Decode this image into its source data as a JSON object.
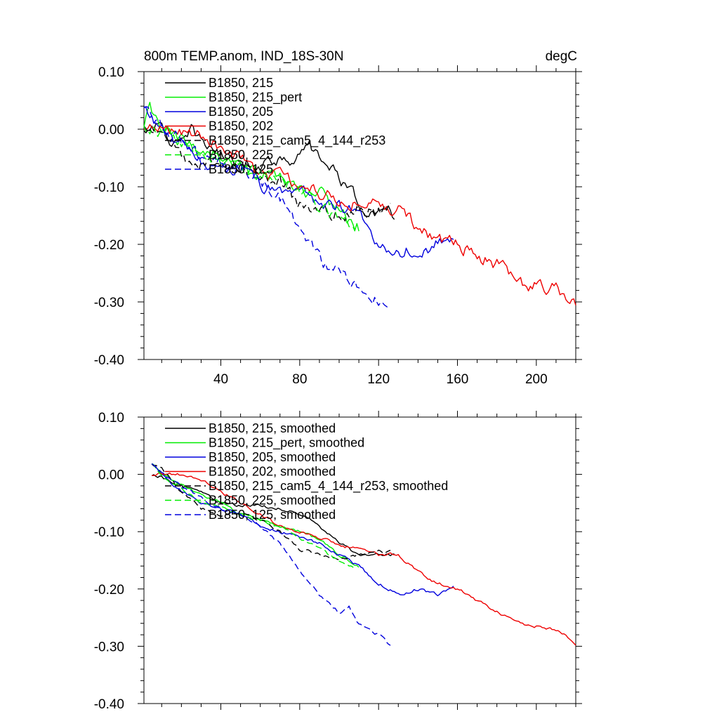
{
  "title_left": "800m TEMP.anom, IND_18S-30N",
  "title_right": "degC",
  "colors": {
    "black": "#000000",
    "green": "#00ee00",
    "blue": "#0000dd",
    "red": "#ee0000"
  },
  "chart_data": [
    {
      "type": "line",
      "panel": "top",
      "title": "800m TEMP.anom, IND_18S-30N",
      "units": "degC",
      "xlim": [
        1,
        220
      ],
      "ylim": [
        -0.4,
        0.1
      ],
      "x_ticks": [
        "40",
        "80",
        "120",
        "160",
        "200"
      ],
      "y_ticks": [
        "0.10",
        "0.00",
        "-0.10",
        "-0.20",
        "-0.30",
        "-0.40"
      ],
      "legend_position": "top-left",
      "series": [
        {
          "name": "B1850, 215",
          "color": "#000000",
          "dash": "solid",
          "length": 128,
          "anchors": [
            [
              1,
              -0.005
            ],
            [
              5,
              0.01
            ],
            [
              10,
              0.0
            ],
            [
              15,
              -0.02
            ],
            [
              20,
              -0.03
            ],
            [
              25,
              -0.005
            ],
            [
              30,
              -0.02
            ],
            [
              35,
              -0.03
            ],
            [
              40,
              -0.045
            ],
            [
              50,
              -0.06
            ],
            [
              60,
              -0.06
            ],
            [
              70,
              -0.05
            ],
            [
              80,
              -0.05
            ],
            [
              85,
              -0.03
            ],
            [
              90,
              -0.05
            ],
            [
              100,
              -0.08
            ],
            [
              110,
              -0.13
            ],
            [
              120,
              -0.15
            ],
            [
              128,
              -0.15
            ]
          ]
        },
        {
          "name": "B1850, 215_pert",
          "color": "#00ee00",
          "dash": "solid",
          "length": 110,
          "anchors": [
            [
              1,
              0.0
            ],
            [
              4,
              0.035
            ],
            [
              10,
              0.0
            ],
            [
              20,
              -0.02
            ],
            [
              30,
              -0.035
            ],
            [
              40,
              -0.045
            ],
            [
              50,
              -0.07
            ],
            [
              60,
              -0.08
            ],
            [
              70,
              -0.09
            ],
            [
              80,
              -0.11
            ],
            [
              90,
              -0.11
            ],
            [
              100,
              -0.14
            ],
            [
              105,
              -0.16
            ],
            [
              110,
              -0.17
            ]
          ]
        },
        {
          "name": "B1850, 205",
          "color": "#0000dd",
          "dash": "solid",
          "length": 158,
          "anchors": [
            [
              1,
              0.035
            ],
            [
              10,
              0.0
            ],
            [
              20,
              -0.03
            ],
            [
              30,
              -0.06
            ],
            [
              40,
              -0.06
            ],
            [
              50,
              -0.07
            ],
            [
              60,
              -0.1
            ],
            [
              70,
              -0.11
            ],
            [
              80,
              -0.1
            ],
            [
              90,
              -0.13
            ],
            [
              100,
              -0.13
            ],
            [
              110,
              -0.15
            ],
            [
              120,
              -0.2
            ],
            [
              130,
              -0.21
            ],
            [
              140,
              -0.21
            ],
            [
              150,
              -0.2
            ],
            [
              158,
              -0.19
            ]
          ]
        },
        {
          "name": "B1850, 202",
          "color": "#ee0000",
          "dash": "solid",
          "length": 220,
          "anchors": [
            [
              1,
              -0.005
            ],
            [
              10,
              0.0
            ],
            [
              20,
              0.0
            ],
            [
              30,
              -0.01
            ],
            [
              40,
              -0.03
            ],
            [
              50,
              -0.05
            ],
            [
              60,
              -0.08
            ],
            [
              70,
              -0.08
            ],
            [
              80,
              -0.1
            ],
            [
              90,
              -0.11
            ],
            [
              100,
              -0.12
            ],
            [
              110,
              -0.13
            ],
            [
              120,
              -0.13
            ],
            [
              130,
              -0.14
            ],
            [
              140,
              -0.17
            ],
            [
              150,
              -0.19
            ],
            [
              160,
              -0.2
            ],
            [
              170,
              -0.22
            ],
            [
              180,
              -0.235
            ],
            [
              190,
              -0.26
            ],
            [
              195,
              -0.28
            ],
            [
              200,
              -0.265
            ],
            [
              210,
              -0.28
            ],
            [
              220,
              -0.31
            ]
          ]
        },
        {
          "name": "B1850, 215_cam5_4_144_r253",
          "color": "#000000",
          "dash": "dashed",
          "length": 126,
          "anchors": [
            [
              1,
              0.0
            ],
            [
              10,
              0.01
            ],
            [
              15,
              -0.02
            ],
            [
              20,
              -0.04
            ],
            [
              25,
              -0.06
            ],
            [
              30,
              -0.06
            ],
            [
              40,
              -0.07
            ],
            [
              50,
              -0.06
            ],
            [
              60,
              -0.08
            ],
            [
              70,
              -0.09
            ],
            [
              80,
              -0.13
            ],
            [
              90,
              -0.14
            ],
            [
              100,
              -0.15
            ],
            [
              110,
              -0.14
            ],
            [
              120,
              -0.14
            ],
            [
              126,
              -0.14
            ]
          ]
        },
        {
          "name": "B1850, 225",
          "color": "#00ee00",
          "dash": "dashed",
          "length": 108,
          "anchors": [
            [
              1,
              0.0
            ],
            [
              10,
              0.0
            ],
            [
              20,
              -0.02
            ],
            [
              30,
              -0.05
            ],
            [
              40,
              -0.06
            ],
            [
              50,
              -0.07
            ],
            [
              60,
              -0.08
            ],
            [
              70,
              -0.09
            ],
            [
              80,
              -0.11
            ],
            [
              90,
              -0.13
            ],
            [
              100,
              -0.16
            ],
            [
              108,
              -0.17
            ]
          ]
        },
        {
          "name": "B1850, 125",
          "color": "#0000dd",
          "dash": "dashed",
          "length": 126,
          "anchors": [
            [
              1,
              0.03
            ],
            [
              10,
              0.0
            ],
            [
              20,
              -0.02
            ],
            [
              30,
              -0.05
            ],
            [
              40,
              -0.06
            ],
            [
              50,
              -0.07
            ],
            [
              60,
              -0.09
            ],
            [
              70,
              -0.12
            ],
            [
              75,
              -0.14
            ],
            [
              80,
              -0.17
            ],
            [
              90,
              -0.22
            ],
            [
              95,
              -0.25
            ],
            [
              100,
              -0.24
            ],
            [
              105,
              -0.26
            ],
            [
              110,
              -0.28
            ],
            [
              115,
              -0.29
            ],
            [
              120,
              -0.3
            ],
            [
              126,
              -0.31
            ]
          ]
        }
      ]
    },
    {
      "type": "line",
      "panel": "bottom",
      "xlim": [
        1,
        220
      ],
      "ylim": [
        -0.4,
        0.1
      ],
      "y_ticks": [
        "0.10",
        "0.00",
        "-0.10",
        "-0.20",
        "-0.30",
        "-0.40"
      ],
      "legend_position": "top-left",
      "series": [
        {
          "name": "B1850, 215, smoothed",
          "color": "#000000",
          "dash": "solid",
          "length": 128,
          "anchors": [
            [
              5,
              0.0
            ],
            [
              10,
              -0.005
            ],
            [
              20,
              -0.02
            ],
            [
              30,
              -0.03
            ],
            [
              40,
              -0.05
            ],
            [
              50,
              -0.055
            ],
            [
              60,
              -0.055
            ],
            [
              70,
              -0.06
            ],
            [
              80,
              -0.07
            ],
            [
              90,
              -0.09
            ],
            [
              100,
              -0.12
            ],
            [
              110,
              -0.14
            ],
            [
              120,
              -0.14
            ],
            [
              128,
              -0.14
            ]
          ]
        },
        {
          "name": "B1850, 215_pert, smoothed",
          "color": "#00ee00",
          "dash": "solid",
          "length": 110,
          "anchors": [
            [
              5,
              0.02
            ],
            [
              10,
              0.0
            ],
            [
              20,
              -0.02
            ],
            [
              30,
              -0.035
            ],
            [
              40,
              -0.05
            ],
            [
              50,
              -0.07
            ],
            [
              60,
              -0.08
            ],
            [
              70,
              -0.09
            ],
            [
              80,
              -0.1
            ],
            [
              90,
              -0.115
            ],
            [
              100,
              -0.14
            ],
            [
              110,
              -0.16
            ]
          ]
        },
        {
          "name": "B1850, 205, smoothed",
          "color": "#0000dd",
          "dash": "solid",
          "length": 158,
          "anchors": [
            [
              5,
              0.02
            ],
            [
              10,
              0.0
            ],
            [
              20,
              -0.03
            ],
            [
              30,
              -0.05
            ],
            [
              40,
              -0.06
            ],
            [
              50,
              -0.07
            ],
            [
              60,
              -0.09
            ],
            [
              70,
              -0.1
            ],
            [
              80,
              -0.11
            ],
            [
              90,
              -0.12
            ],
            [
              100,
              -0.14
            ],
            [
              110,
              -0.16
            ],
            [
              120,
              -0.19
            ],
            [
              130,
              -0.21
            ],
            [
              140,
              -0.2
            ],
            [
              150,
              -0.21
            ],
            [
              158,
              -0.195
            ]
          ]
        },
        {
          "name": "B1850, 202, smoothed",
          "color": "#ee0000",
          "dash": "solid",
          "length": 220,
          "anchors": [
            [
              5,
              0.0
            ],
            [
              20,
              0.0
            ],
            [
              30,
              -0.01
            ],
            [
              40,
              -0.03
            ],
            [
              50,
              -0.05
            ],
            [
              60,
              -0.07
            ],
            [
              70,
              -0.09
            ],
            [
              80,
              -0.1
            ],
            [
              90,
              -0.11
            ],
            [
              100,
              -0.125
            ],
            [
              110,
              -0.13
            ],
            [
              120,
              -0.14
            ],
            [
              130,
              -0.14
            ],
            [
              140,
              -0.17
            ],
            [
              150,
              -0.19
            ],
            [
              160,
              -0.2
            ],
            [
              170,
              -0.22
            ],
            [
              180,
              -0.24
            ],
            [
              190,
              -0.26
            ],
            [
              200,
              -0.265
            ],
            [
              210,
              -0.27
            ],
            [
              220,
              -0.295
            ]
          ]
        },
        {
          "name": "B1850, 215_cam5_4_144_r253, smoothed",
          "color": "#000000",
          "dash": "dashed",
          "length": 126,
          "anchors": [
            [
              5,
              0.02
            ],
            [
              10,
              0.01
            ],
            [
              20,
              -0.03
            ],
            [
              30,
              -0.06
            ],
            [
              40,
              -0.07
            ],
            [
              50,
              -0.065
            ],
            [
              60,
              -0.08
            ],
            [
              70,
              -0.1
            ],
            [
              80,
              -0.13
            ],
            [
              90,
              -0.14
            ],
            [
              100,
              -0.15
            ],
            [
              110,
              -0.14
            ],
            [
              120,
              -0.135
            ],
            [
              126,
              -0.135
            ]
          ]
        },
        {
          "name": "B1850, 225, smoothed",
          "color": "#00ee00",
          "dash": "dashed",
          "length": 108,
          "anchors": [
            [
              5,
              0.02
            ],
            [
              10,
              0.0
            ],
            [
              20,
              -0.025
            ],
            [
              30,
              -0.05
            ],
            [
              40,
              -0.055
            ],
            [
              50,
              -0.07
            ],
            [
              60,
              -0.08
            ],
            [
              70,
              -0.09
            ],
            [
              80,
              -0.11
            ],
            [
              90,
              -0.13
            ],
            [
              100,
              -0.15
            ],
            [
              108,
              -0.165
            ]
          ]
        },
        {
          "name": "B1850, 125, smoothed",
          "color": "#0000dd",
          "dash": "dashed",
          "length": 126,
          "anchors": [
            [
              5,
              0.02
            ],
            [
              10,
              0.0
            ],
            [
              20,
              -0.02
            ],
            [
              30,
              -0.04
            ],
            [
              40,
              -0.06
            ],
            [
              50,
              -0.07
            ],
            [
              60,
              -0.09
            ],
            [
              70,
              -0.12
            ],
            [
              80,
              -0.17
            ],
            [
              90,
              -0.21
            ],
            [
              100,
              -0.24
            ],
            [
              105,
              -0.23
            ],
            [
              110,
              -0.26
            ],
            [
              120,
              -0.28
            ],
            [
              126,
              -0.3
            ]
          ]
        }
      ]
    }
  ]
}
